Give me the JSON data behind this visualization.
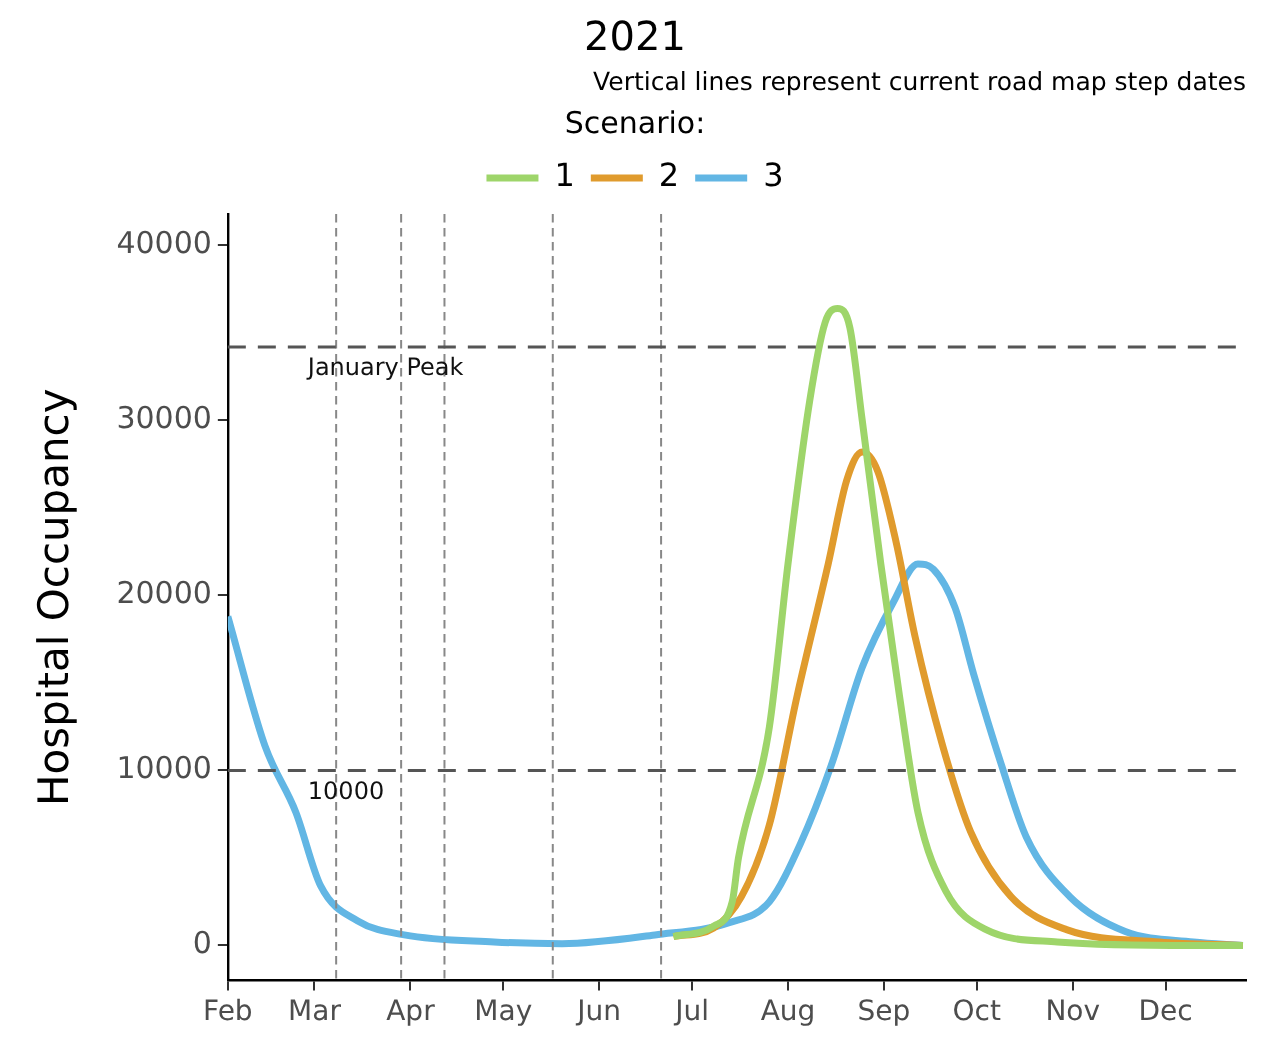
{
  "chart_data": {
    "type": "line",
    "title": "2021",
    "subtitle": "Vertical lines represent current road map step dates",
    "ylabel": "Hospital Occupancy",
    "legend_title": "Scenario:",
    "legend": "top",
    "grid": false,
    "marker": "none",
    "line_style": "solid",
    "xlim": [
      "2021-02-01",
      "2021-12-27"
    ],
    "xticks": [
      {
        "value": "2021-02-01",
        "label": "Feb"
      },
      {
        "value": "2021-03-01",
        "label": "Mar"
      },
      {
        "value": "2021-04-01",
        "label": "Apr"
      },
      {
        "value": "2021-05-01",
        "label": "May"
      },
      {
        "value": "2021-06-01",
        "label": "Jun"
      },
      {
        "value": "2021-07-01",
        "label": "Jul"
      },
      {
        "value": "2021-08-01",
        "label": "Aug"
      },
      {
        "value": "2021-09-01",
        "label": "Sep"
      },
      {
        "value": "2021-10-01",
        "label": "Oct"
      },
      {
        "value": "2021-11-01",
        "label": "Nov"
      },
      {
        "value": "2021-12-01",
        "label": "Dec"
      }
    ],
    "ylim": [
      -2000,
      41800
    ],
    "yticks": [
      0,
      10000,
      20000,
      30000,
      40000
    ],
    "series": [
      {
        "name": "1",
        "color": "#9ed56a",
        "x": [
          "2021-06-25",
          "2021-07-08",
          "2021-07-14",
          "2021-07-16",
          "2021-07-26",
          "2021-08-01",
          "2021-08-08",
          "2021-08-13",
          "2021-08-17",
          "2021-08-21",
          "2021-08-25",
          "2021-08-31",
          "2021-09-06",
          "2021-09-12",
          "2021-09-21",
          "2021-10-04",
          "2021-10-27",
          "2021-12-10",
          "2021-12-26"
        ],
        "values": [
          500,
          1100,
          2500,
          5000,
          12500,
          21800,
          31100,
          35600,
          36400,
          35300,
          30000,
          21800,
          14300,
          7600,
          3100,
          900,
          200,
          0,
          0
        ]
      },
      {
        "name": "2",
        "color": "#e09b2d",
        "x": [
          "2021-06-25",
          "2021-07-08",
          "2021-07-17",
          "2021-07-26",
          "2021-08-04",
          "2021-08-14",
          "2021-08-20",
          "2021-08-25",
          "2021-08-30",
          "2021-09-05",
          "2021-09-11",
          "2021-09-20",
          "2021-09-29",
          "2021-10-12",
          "2021-10-30",
          "2021-11-29",
          "2021-12-26"
        ],
        "values": [
          500,
          1000,
          2800,
          6900,
          14300,
          21800,
          26600,
          28200,
          27100,
          23000,
          17700,
          11400,
          6500,
          2800,
          900,
          200,
          0
        ]
      },
      {
        "name": "3",
        "color": "#62b6e4",
        "x": [
          "2021-02-01",
          "2021-02-13",
          "2021-02-23",
          "2021-03-03",
          "2021-03-15",
          "2021-03-30",
          "2021-04-28",
          "2021-05-20",
          "2021-06-19",
          "2021-07-13",
          "2021-07-26",
          "2021-08-05",
          "2021-08-15",
          "2021-08-25",
          "2021-09-04",
          "2021-09-12",
          "2021-09-17",
          "2021-09-24",
          "2021-09-30",
          "2021-10-09",
          "2021-10-17",
          "2021-10-31",
          "2021-11-18",
          "2021-12-10",
          "2021-12-26"
        ],
        "values": [
          18800,
          11400,
          7600,
          3400,
          1400,
          600,
          200,
          100,
          600,
          1300,
          2500,
          5800,
          10300,
          15900,
          19600,
          21800,
          21500,
          19300,
          15500,
          10300,
          6200,
          2800,
          800,
          200,
          0
        ]
      }
    ],
    "ref_lines": [
      {
        "axis": "x",
        "value": "2021-03-08",
        "color": "#888888",
        "line_style": "dashed"
      },
      {
        "axis": "x",
        "value": "2021-03-29",
        "color": "#888888",
        "line_style": "dashed"
      },
      {
        "axis": "x",
        "value": "2021-04-12",
        "color": "#888888",
        "line_style": "dashed"
      },
      {
        "axis": "x",
        "value": "2021-05-17",
        "color": "#888888",
        "line_style": "dashed"
      },
      {
        "axis": "x",
        "value": "2021-06-21",
        "color": "#888888",
        "line_style": "dashed"
      },
      {
        "axis": "y",
        "value": 34200,
        "label": "January Peak",
        "color": "#555555",
        "line_style": "dashed"
      },
      {
        "axis": "y",
        "value": 10000,
        "label": "10000",
        "color": "#555555",
        "line_style": "dashed"
      }
    ]
  }
}
